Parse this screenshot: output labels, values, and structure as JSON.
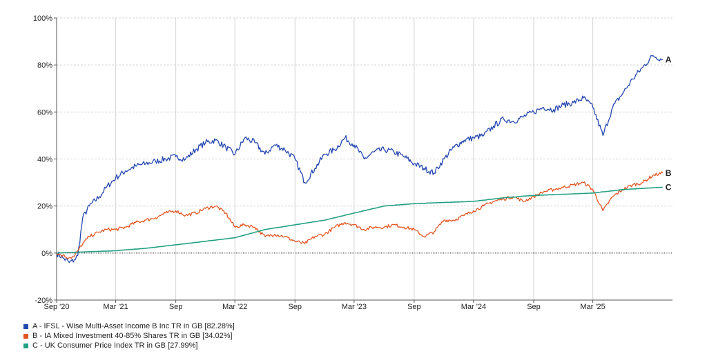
{
  "chart_data": {
    "type": "line",
    "title": "",
    "xlabel": "",
    "ylabel": "",
    "ylim": [
      -20,
      100
    ],
    "yticks": [
      -20,
      0,
      20,
      40,
      60,
      80,
      100
    ],
    "ytick_labels": [
      "-20%",
      "0%",
      "20%",
      "40%",
      "60%",
      "80%",
      "100%"
    ],
    "xlim": [
      "2020-09-01",
      "2025-10-31"
    ],
    "xticks": [
      {
        "date": "2020-09-01",
        "label": "Sep '20"
      },
      {
        "date": "2021-03-01",
        "label": "Mar '21"
      },
      {
        "date": "2021-09-01",
        "label": "Sep"
      },
      {
        "date": "2022-03-01",
        "label": "Mar '22"
      },
      {
        "date": "2022-09-01",
        "label": "Sep"
      },
      {
        "date": "2023-03-01",
        "label": "Mar '23"
      },
      {
        "date": "2023-09-01",
        "label": "Sep"
      },
      {
        "date": "2024-03-01",
        "label": "Mar '24"
      },
      {
        "date": "2024-09-01",
        "label": "Sep"
      },
      {
        "date": "2025-03-01",
        "label": "Mar '25"
      }
    ],
    "grid": true,
    "legend_position": "bottom-left",
    "series": [
      {
        "name": "A - IFSL - Wise Multi-Asset Income B Inc TR in GB [82.28%]",
        "end_label": "A",
        "color": "#2346b0",
        "points": [
          [
            "2020-09-01",
            0
          ],
          [
            "2020-09-20",
            -2
          ],
          [
            "2020-10-10",
            -4
          ],
          [
            "2020-10-25",
            -3
          ],
          [
            "2020-11-05",
            -1
          ],
          [
            "2020-11-20",
            15
          ],
          [
            "2020-12-10",
            20
          ],
          [
            "2021-01-10",
            24
          ],
          [
            "2021-02-01",
            28
          ],
          [
            "2021-03-01",
            32
          ],
          [
            "2021-04-01",
            35
          ],
          [
            "2021-05-01",
            37
          ],
          [
            "2021-06-01",
            38
          ],
          [
            "2021-07-01",
            39
          ],
          [
            "2021-08-01",
            40
          ],
          [
            "2021-09-01",
            41
          ],
          [
            "2021-10-01",
            40
          ],
          [
            "2021-11-01",
            44
          ],
          [
            "2021-12-01",
            47
          ],
          [
            "2022-01-01",
            48
          ],
          [
            "2022-02-01",
            45
          ],
          [
            "2022-03-01",
            42
          ],
          [
            "2022-04-01",
            49
          ],
          [
            "2022-05-01",
            47
          ],
          [
            "2022-06-01",
            42
          ],
          [
            "2022-07-01",
            46
          ],
          [
            "2022-08-01",
            44
          ],
          [
            "2022-09-01",
            40
          ],
          [
            "2022-10-01",
            30
          ],
          [
            "2022-11-01",
            36
          ],
          [
            "2022-12-01",
            42
          ],
          [
            "2023-01-01",
            44
          ],
          [
            "2023-02-01",
            49
          ],
          [
            "2023-03-01",
            46
          ],
          [
            "2023-04-01",
            40
          ],
          [
            "2023-05-01",
            43
          ],
          [
            "2023-06-01",
            44
          ],
          [
            "2023-07-01",
            43
          ],
          [
            "2023-08-01",
            41
          ],
          [
            "2023-09-01",
            38
          ],
          [
            "2023-10-01",
            36
          ],
          [
            "2023-11-01",
            34
          ],
          [
            "2023-12-01",
            40
          ],
          [
            "2024-01-01",
            45
          ],
          [
            "2024-02-01",
            48
          ],
          [
            "2024-03-01",
            49
          ],
          [
            "2024-04-01",
            50
          ],
          [
            "2024-05-01",
            54
          ],
          [
            "2024-06-01",
            57
          ],
          [
            "2024-07-01",
            56
          ],
          [
            "2024-08-01",
            58
          ],
          [
            "2024-09-01",
            60
          ],
          [
            "2024-10-01",
            62
          ],
          [
            "2024-11-01",
            61
          ],
          [
            "2024-12-01",
            63
          ],
          [
            "2025-01-01",
            64
          ],
          [
            "2025-02-01",
            66
          ],
          [
            "2025-03-01",
            62
          ],
          [
            "2025-04-01",
            50
          ],
          [
            "2025-05-01",
            62
          ],
          [
            "2025-06-01",
            68
          ],
          [
            "2025-07-01",
            74
          ],
          [
            "2025-08-01",
            79
          ],
          [
            "2025-09-01",
            84
          ],
          [
            "2025-10-01",
            82.28
          ]
        ]
      },
      {
        "name": "B - IA Mixed Investment 40-85% Shares TR in GB [34.02%]",
        "end_label": "B",
        "color": "#e2541f",
        "points": [
          [
            "2020-09-01",
            0
          ],
          [
            "2020-09-20",
            -1
          ],
          [
            "2020-10-10",
            -2
          ],
          [
            "2020-10-25",
            -1.5
          ],
          [
            "2020-11-05",
            1
          ],
          [
            "2020-11-20",
            4
          ],
          [
            "2020-12-10",
            7
          ],
          [
            "2021-01-10",
            9
          ],
          [
            "2021-02-01",
            10
          ],
          [
            "2021-03-01",
            10
          ],
          [
            "2021-04-01",
            11
          ],
          [
            "2021-05-01",
            13
          ],
          [
            "2021-06-01",
            14
          ],
          [
            "2021-07-01",
            15
          ],
          [
            "2021-08-01",
            17
          ],
          [
            "2021-09-01",
            18
          ],
          [
            "2021-10-01",
            16
          ],
          [
            "2021-11-01",
            17
          ],
          [
            "2021-12-01",
            19
          ],
          [
            "2022-01-01",
            20
          ],
          [
            "2022-02-01",
            17
          ],
          [
            "2022-03-01",
            11
          ],
          [
            "2022-04-01",
            12
          ],
          [
            "2022-05-01",
            11
          ],
          [
            "2022-06-01",
            7
          ],
          [
            "2022-07-01",
            8
          ],
          [
            "2022-08-01",
            7
          ],
          [
            "2022-09-01",
            5
          ],
          [
            "2022-10-01",
            4
          ],
          [
            "2022-11-01",
            7
          ],
          [
            "2022-12-01",
            8
          ],
          [
            "2023-01-01",
            11
          ],
          [
            "2023-02-01",
            13
          ],
          [
            "2023-03-01",
            12
          ],
          [
            "2023-04-01",
            10
          ],
          [
            "2023-05-01",
            11
          ],
          [
            "2023-06-01",
            11
          ],
          [
            "2023-07-01",
            12
          ],
          [
            "2023-08-01",
            11
          ],
          [
            "2023-09-01",
            10
          ],
          [
            "2023-10-01",
            7
          ],
          [
            "2023-11-01",
            9
          ],
          [
            "2023-12-01",
            14
          ],
          [
            "2024-01-01",
            14
          ],
          [
            "2024-02-01",
            16
          ],
          [
            "2024-03-01",
            18
          ],
          [
            "2024-04-01",
            20
          ],
          [
            "2024-05-01",
            22
          ],
          [
            "2024-06-01",
            23
          ],
          [
            "2024-07-01",
            24
          ],
          [
            "2024-08-01",
            22
          ],
          [
            "2024-09-01",
            24
          ],
          [
            "2024-10-01",
            26
          ],
          [
            "2024-11-01",
            27
          ],
          [
            "2024-12-01",
            28
          ],
          [
            "2025-01-01",
            29
          ],
          [
            "2025-02-01",
            30
          ],
          [
            "2025-03-01",
            27
          ],
          [
            "2025-04-01",
            18
          ],
          [
            "2025-05-01",
            24
          ],
          [
            "2025-06-01",
            27
          ],
          [
            "2025-07-01",
            29
          ],
          [
            "2025-08-01",
            30
          ],
          [
            "2025-09-01",
            33
          ],
          [
            "2025-10-01",
            34.02
          ]
        ]
      },
      {
        "name": "C - UK Consumer Price Index TR in GB [27.99%]",
        "end_label": "C",
        "color": "#22a083",
        "points": [
          [
            "2020-09-01",
            0
          ],
          [
            "2020-12-01",
            0.5
          ],
          [
            "2021-03-01",
            1
          ],
          [
            "2021-06-01",
            2
          ],
          [
            "2021-09-01",
            3.5
          ],
          [
            "2021-12-01",
            5
          ],
          [
            "2022-03-01",
            6.5
          ],
          [
            "2022-06-01",
            10
          ],
          [
            "2022-09-01",
            12
          ],
          [
            "2022-12-01",
            14
          ],
          [
            "2023-03-01",
            17
          ],
          [
            "2023-06-01",
            20
          ],
          [
            "2023-09-01",
            21
          ],
          [
            "2023-12-01",
            21.5
          ],
          [
            "2024-03-01",
            22
          ],
          [
            "2024-06-01",
            23.5
          ],
          [
            "2024-09-01",
            24.5
          ],
          [
            "2024-12-01",
            25
          ],
          [
            "2025-03-01",
            25.5
          ],
          [
            "2025-06-01",
            27
          ],
          [
            "2025-10-01",
            27.99
          ]
        ]
      }
    ]
  }
}
